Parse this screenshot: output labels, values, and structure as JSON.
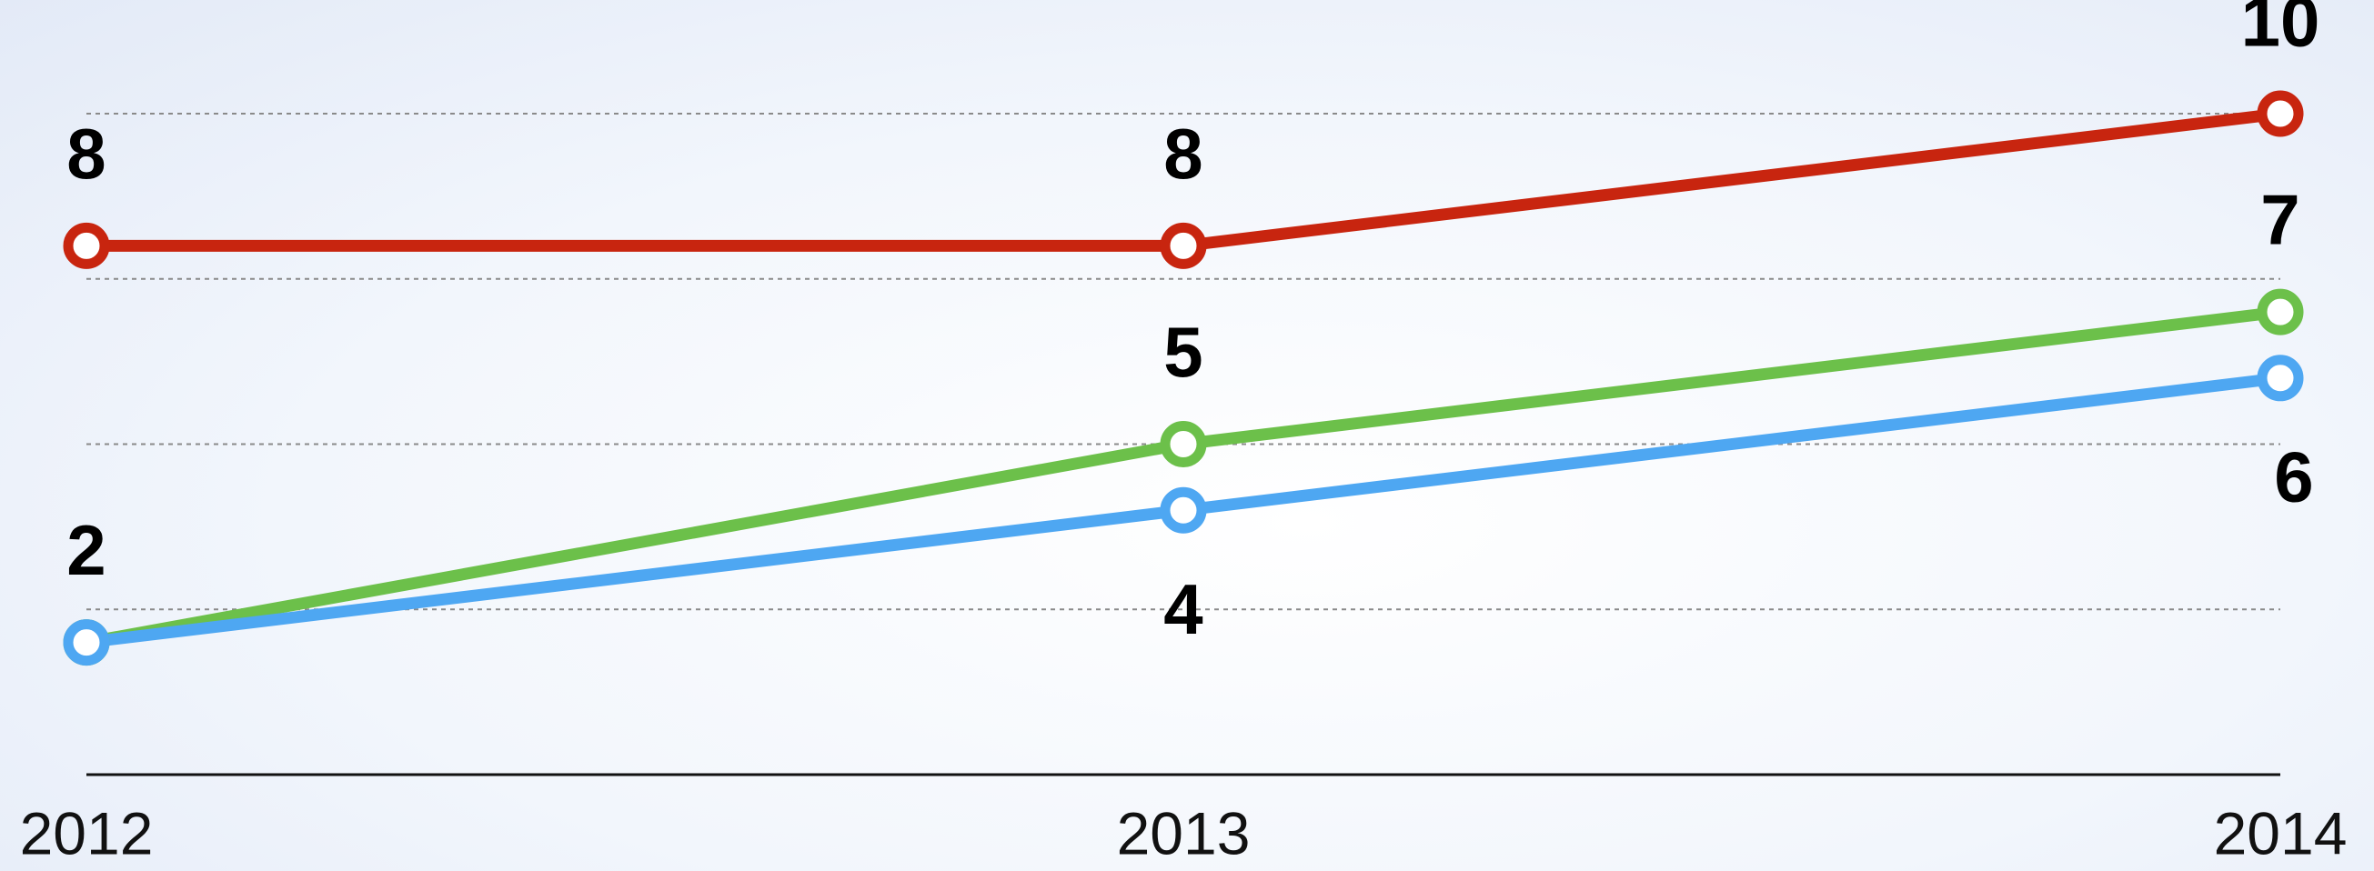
{
  "chart_data": {
    "type": "line",
    "categories": [
      "2012",
      "2013",
      "2014"
    ],
    "series": [
      {
        "color": "#c8250f",
        "values": [
          8,
          8,
          10
        ]
      },
      {
        "color": "#6cc04a",
        "values": [
          2,
          5,
          7
        ]
      },
      {
        "color": "#4ea7f2",
        "values": [
          2,
          4,
          6
        ]
      }
    ],
    "ylim": [
      0,
      10
    ],
    "yticks": [
      0,
      2.5,
      5,
      7.5,
      10
    ],
    "grid": true
  }
}
